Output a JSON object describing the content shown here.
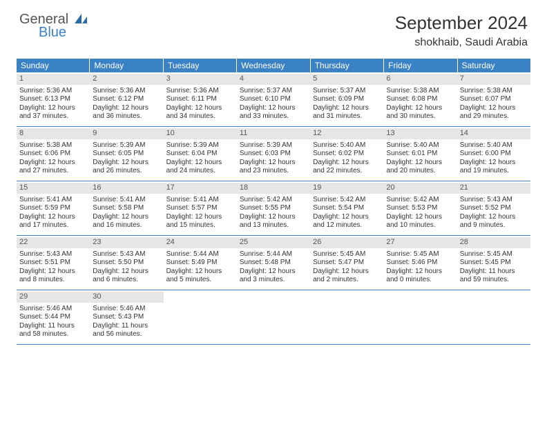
{
  "logo": {
    "general": "General",
    "blue": "Blue"
  },
  "header": {
    "month_title": "September 2024",
    "location": "shokhaib, Saudi Arabia"
  },
  "colors": {
    "accent": "#3b82c4",
    "header_bar": "#e6e6e6",
    "bg": "#ffffff"
  },
  "weekdays": [
    "Sunday",
    "Monday",
    "Tuesday",
    "Wednesday",
    "Thursday",
    "Friday",
    "Saturday"
  ],
  "weeks": [
    [
      {
        "n": "1",
        "sunrise": "5:36 AM",
        "sunset": "6:13 PM",
        "daylight": "12 hours and 37 minutes."
      },
      {
        "n": "2",
        "sunrise": "5:36 AM",
        "sunset": "6:12 PM",
        "daylight": "12 hours and 36 minutes."
      },
      {
        "n": "3",
        "sunrise": "5:36 AM",
        "sunset": "6:11 PM",
        "daylight": "12 hours and 34 minutes."
      },
      {
        "n": "4",
        "sunrise": "5:37 AM",
        "sunset": "6:10 PM",
        "daylight": "12 hours and 33 minutes."
      },
      {
        "n": "5",
        "sunrise": "5:37 AM",
        "sunset": "6:09 PM",
        "daylight": "12 hours and 31 minutes."
      },
      {
        "n": "6",
        "sunrise": "5:38 AM",
        "sunset": "6:08 PM",
        "daylight": "12 hours and 30 minutes."
      },
      {
        "n": "7",
        "sunrise": "5:38 AM",
        "sunset": "6:07 PM",
        "daylight": "12 hours and 29 minutes."
      }
    ],
    [
      {
        "n": "8",
        "sunrise": "5:38 AM",
        "sunset": "6:06 PM",
        "daylight": "12 hours and 27 minutes."
      },
      {
        "n": "9",
        "sunrise": "5:39 AM",
        "sunset": "6:05 PM",
        "daylight": "12 hours and 26 minutes."
      },
      {
        "n": "10",
        "sunrise": "5:39 AM",
        "sunset": "6:04 PM",
        "daylight": "12 hours and 24 minutes."
      },
      {
        "n": "11",
        "sunrise": "5:39 AM",
        "sunset": "6:03 PM",
        "daylight": "12 hours and 23 minutes."
      },
      {
        "n": "12",
        "sunrise": "5:40 AM",
        "sunset": "6:02 PM",
        "daylight": "12 hours and 22 minutes."
      },
      {
        "n": "13",
        "sunrise": "5:40 AM",
        "sunset": "6:01 PM",
        "daylight": "12 hours and 20 minutes."
      },
      {
        "n": "14",
        "sunrise": "5:40 AM",
        "sunset": "6:00 PM",
        "daylight": "12 hours and 19 minutes."
      }
    ],
    [
      {
        "n": "15",
        "sunrise": "5:41 AM",
        "sunset": "5:59 PM",
        "daylight": "12 hours and 17 minutes."
      },
      {
        "n": "16",
        "sunrise": "5:41 AM",
        "sunset": "5:58 PM",
        "daylight": "12 hours and 16 minutes."
      },
      {
        "n": "17",
        "sunrise": "5:41 AM",
        "sunset": "5:57 PM",
        "daylight": "12 hours and 15 minutes."
      },
      {
        "n": "18",
        "sunrise": "5:42 AM",
        "sunset": "5:55 PM",
        "daylight": "12 hours and 13 minutes."
      },
      {
        "n": "19",
        "sunrise": "5:42 AM",
        "sunset": "5:54 PM",
        "daylight": "12 hours and 12 minutes."
      },
      {
        "n": "20",
        "sunrise": "5:42 AM",
        "sunset": "5:53 PM",
        "daylight": "12 hours and 10 minutes."
      },
      {
        "n": "21",
        "sunrise": "5:43 AM",
        "sunset": "5:52 PM",
        "daylight": "12 hours and 9 minutes."
      }
    ],
    [
      {
        "n": "22",
        "sunrise": "5:43 AM",
        "sunset": "5:51 PM",
        "daylight": "12 hours and 8 minutes."
      },
      {
        "n": "23",
        "sunrise": "5:43 AM",
        "sunset": "5:50 PM",
        "daylight": "12 hours and 6 minutes."
      },
      {
        "n": "24",
        "sunrise": "5:44 AM",
        "sunset": "5:49 PM",
        "daylight": "12 hours and 5 minutes."
      },
      {
        "n": "25",
        "sunrise": "5:44 AM",
        "sunset": "5:48 PM",
        "daylight": "12 hours and 3 minutes."
      },
      {
        "n": "26",
        "sunrise": "5:45 AM",
        "sunset": "5:47 PM",
        "daylight": "12 hours and 2 minutes."
      },
      {
        "n": "27",
        "sunrise": "5:45 AM",
        "sunset": "5:46 PM",
        "daylight": "12 hours and 0 minutes."
      },
      {
        "n": "28",
        "sunrise": "5:45 AM",
        "sunset": "5:45 PM",
        "daylight": "11 hours and 59 minutes."
      }
    ],
    [
      {
        "n": "29",
        "sunrise": "5:46 AM",
        "sunset": "5:44 PM",
        "daylight": "11 hours and 58 minutes."
      },
      {
        "n": "30",
        "sunrise": "5:46 AM",
        "sunset": "5:43 PM",
        "daylight": "11 hours and 56 minutes."
      },
      null,
      null,
      null,
      null,
      null
    ]
  ],
  "labels": {
    "sunrise": "Sunrise:",
    "sunset": "Sunset:",
    "daylight": "Daylight:"
  }
}
